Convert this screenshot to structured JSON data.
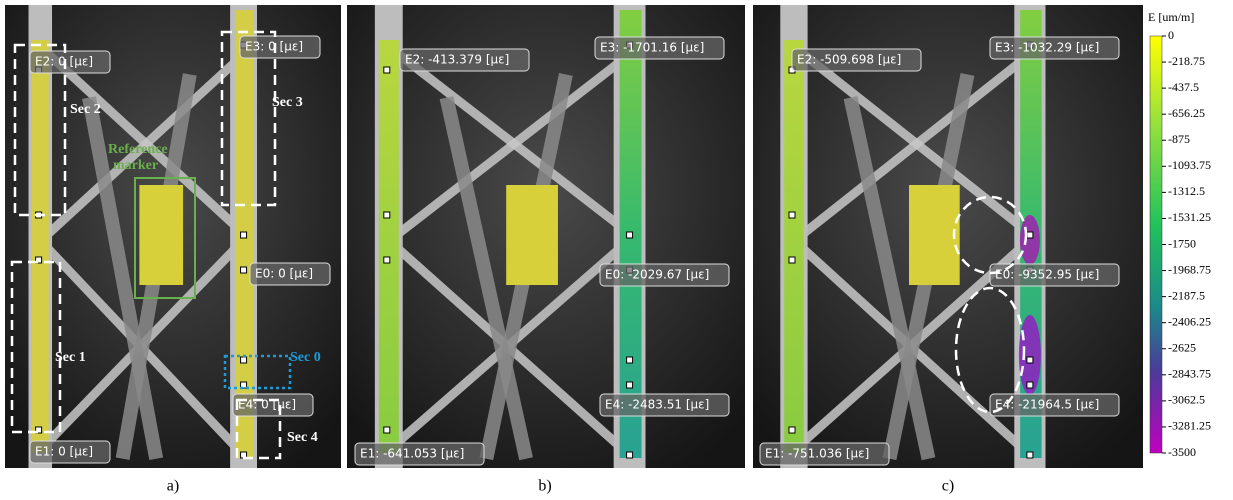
{
  "panels": [
    {
      "caption": "a)",
      "labels": [
        "E2: 0 [με]",
        "E3: 0 [με]",
        "E0: 0 [με]",
        "E4: 0 [με]",
        "E1: 0 [με]"
      ],
      "annotations": [
        "Sec 2",
        "Sec 3",
        "Reference",
        "marker",
        "Sec 1",
        "Sec 0",
        "Sec 4"
      ]
    },
    {
      "caption": "b)",
      "labels": [
        "E2: -413.379 [με]",
        "E3: -1701.16 [με]",
        "E0: -2029.67 [με]",
        "E4: -2483.51 [με]",
        "E1: -641.053 [με]"
      ]
    },
    {
      "caption": "c)",
      "labels": [
        "E2: -509.698 [με]",
        "E3: -1032.29 [με]",
        "E0: -9352.95 [με]",
        "E4: -21964.5 [με]",
        "E1: -751.036 [με]"
      ]
    }
  ],
  "colorbar": {
    "title": "E [um/m]",
    "ticks": [
      0,
      -218.75,
      -437.5,
      -656.25,
      -875,
      -1093.75,
      -1312.5,
      -1531.25,
      -1750,
      -1968.75,
      -2187.5,
      -2406.25,
      -2625,
      -2843.75,
      -3062.5,
      -3281.25,
      -3500
    ]
  }
}
